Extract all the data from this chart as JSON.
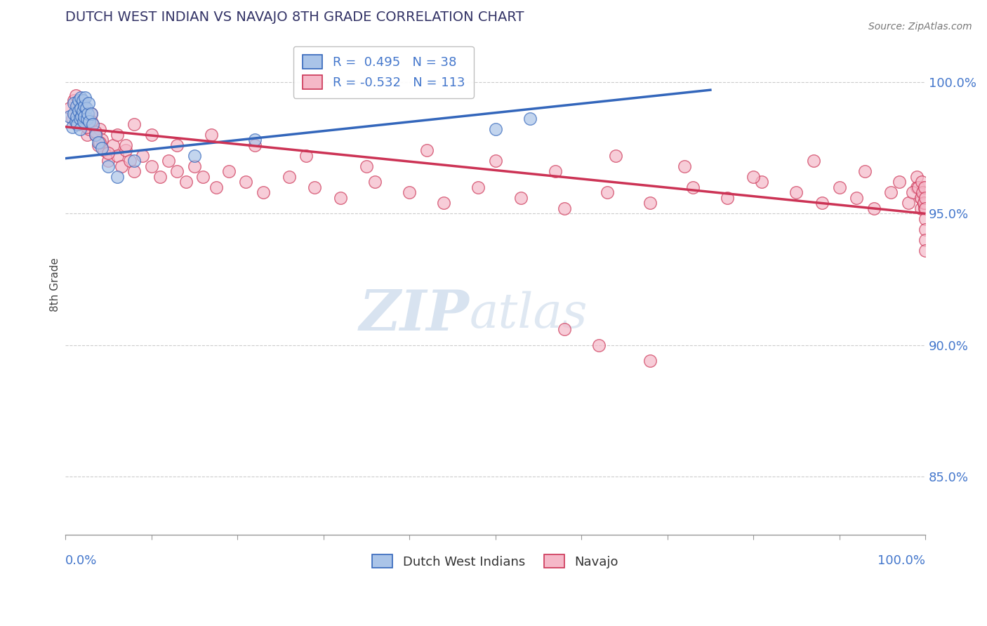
{
  "title": "DUTCH WEST INDIAN VS NAVAJO 8TH GRADE CORRELATION CHART",
  "source_text": "Source: ZipAtlas.com",
  "ylabel": "8th Grade",
  "ytick_labels": [
    "85.0%",
    "90.0%",
    "95.0%",
    "100.0%"
  ],
  "ytick_values": [
    0.85,
    0.9,
    0.95,
    1.0
  ],
  "xlim": [
    0.0,
    1.0
  ],
  "ylim": [
    0.828,
    1.018
  ],
  "legend_blue_label": "R =  0.495   N = 38",
  "legend_pink_label": "R = -0.532   N = 113",
  "legend_label1": "Dutch West Indians",
  "legend_label2": "Navajo",
  "blue_color": "#aac4e8",
  "pink_color": "#f5b8c8",
  "blue_line_color": "#3366bb",
  "pink_line_color": "#cc3355",
  "watermark_zip": "ZIP",
  "watermark_atlas": "atlas",
  "blue_line_x": [
    0.0,
    0.75
  ],
  "blue_line_y": [
    0.971,
    0.997
  ],
  "pink_line_x": [
    0.0,
    1.0
  ],
  "pink_line_y": [
    0.983,
    0.95
  ],
  "blue_scatter_x": [
    0.005,
    0.008,
    0.01,
    0.01,
    0.012,
    0.013,
    0.013,
    0.014,
    0.015,
    0.015,
    0.017,
    0.017,
    0.018,
    0.018,
    0.019,
    0.02,
    0.02,
    0.021,
    0.022,
    0.022,
    0.023,
    0.024,
    0.025,
    0.026,
    0.027,
    0.028,
    0.03,
    0.032,
    0.035,
    0.038,
    0.042,
    0.05,
    0.06,
    0.08,
    0.15,
    0.22,
    0.5,
    0.54
  ],
  "blue_scatter_y": [
    0.987,
    0.983,
    0.992,
    0.988,
    0.985,
    0.991,
    0.987,
    0.984,
    0.993,
    0.989,
    0.986,
    0.982,
    0.994,
    0.99,
    0.987,
    0.993,
    0.989,
    0.985,
    0.991,
    0.987,
    0.994,
    0.99,
    0.986,
    0.988,
    0.992,
    0.985,
    0.988,
    0.984,
    0.98,
    0.977,
    0.975,
    0.968,
    0.964,
    0.97,
    0.972,
    0.978,
    0.982,
    0.986
  ],
  "pink_scatter_x": [
    0.005,
    0.008,
    0.01,
    0.013,
    0.015,
    0.017,
    0.018,
    0.02,
    0.022,
    0.024,
    0.025,
    0.027,
    0.028,
    0.03,
    0.032,
    0.035,
    0.038,
    0.04,
    0.042,
    0.045,
    0.05,
    0.055,
    0.06,
    0.065,
    0.07,
    0.075,
    0.08,
    0.09,
    0.1,
    0.11,
    0.12,
    0.13,
    0.14,
    0.15,
    0.16,
    0.175,
    0.19,
    0.21,
    0.23,
    0.26,
    0.29,
    0.32,
    0.36,
    0.4,
    0.44,
    0.48,
    0.53,
    0.58,
    0.63,
    0.68,
    0.73,
    0.77,
    0.81,
    0.85,
    0.88,
    0.9,
    0.92,
    0.94,
    0.96,
    0.98,
    0.99,
    0.995,
    0.995,
    0.998,
    0.998,
    0.998,
    0.999,
    0.999,
    0.999,
    1.0,
    0.012,
    0.015,
    0.02,
    0.025,
    0.03,
    0.035,
    0.04,
    0.05,
    0.06,
    0.07,
    0.08,
    0.1,
    0.13,
    0.17,
    0.22,
    0.28,
    0.35,
    0.42,
    0.5,
    0.57,
    0.64,
    0.72,
    0.8,
    0.87,
    0.93,
    0.97,
    0.985,
    0.99,
    0.992,
    0.995,
    0.996,
    0.997,
    0.998,
    0.999,
    1.0,
    1.0,
    1.0,
    1.0,
    1.0,
    1.0,
    0.58,
    0.62,
    0.68
  ],
  "pink_scatter_y": [
    0.99,
    0.986,
    0.993,
    0.987,
    0.984,
    0.99,
    0.986,
    0.992,
    0.988,
    0.984,
    0.98,
    0.986,
    0.982,
    0.988,
    0.984,
    0.98,
    0.976,
    0.982,
    0.978,
    0.974,
    0.97,
    0.976,
    0.972,
    0.968,
    0.974,
    0.97,
    0.966,
    0.972,
    0.968,
    0.964,
    0.97,
    0.966,
    0.962,
    0.968,
    0.964,
    0.96,
    0.966,
    0.962,
    0.958,
    0.964,
    0.96,
    0.956,
    0.962,
    0.958,
    0.954,
    0.96,
    0.956,
    0.952,
    0.958,
    0.954,
    0.96,
    0.956,
    0.962,
    0.958,
    0.954,
    0.96,
    0.956,
    0.952,
    0.958,
    0.954,
    0.96,
    0.956,
    0.952,
    0.958,
    0.954,
    0.96,
    0.956,
    0.952,
    0.958,
    0.954,
    0.995,
    0.991,
    0.987,
    0.983,
    0.985,
    0.981,
    0.977,
    0.973,
    0.98,
    0.976,
    0.984,
    0.98,
    0.976,
    0.98,
    0.976,
    0.972,
    0.968,
    0.974,
    0.97,
    0.966,
    0.972,
    0.968,
    0.964,
    0.97,
    0.966,
    0.962,
    0.958,
    0.964,
    0.96,
    0.956,
    0.962,
    0.958,
    0.954,
    0.96,
    0.956,
    0.952,
    0.948,
    0.944,
    0.94,
    0.936,
    0.906,
    0.9,
    0.894
  ]
}
